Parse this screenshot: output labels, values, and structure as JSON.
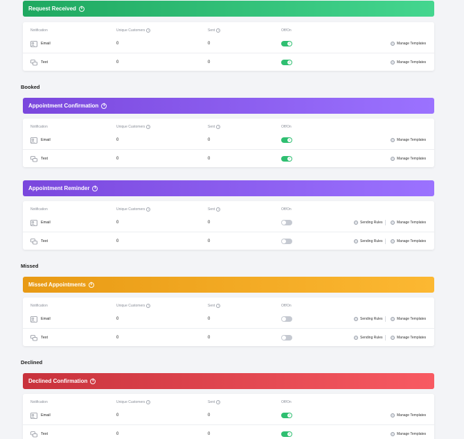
{
  "columns": {
    "notification": "Notification",
    "unique_customers": "Unique Customers",
    "sent": "Sent",
    "off_on": "Off/On"
  },
  "actions": {
    "sending_rules": "Sending Rules",
    "manage_templates": "Manage Templates"
  },
  "sections": {
    "booked": "Booked",
    "missed": "Missed",
    "declined": "Declined"
  },
  "blocks": [
    {
      "title": "Request Received",
      "color": "#2fbf71",
      "rows": [
        {
          "channel": "Email",
          "unique_customers": "0",
          "sent": "0",
          "enabled": true
        },
        {
          "channel": "Text",
          "unique_customers": "0",
          "sent": "0",
          "enabled": true
        }
      ]
    },
    {
      "title": "Appointment Confirmation",
      "color": "#8a5cf0",
      "rows": [
        {
          "channel": "Email",
          "unique_customers": "0",
          "sent": "0",
          "enabled": true
        },
        {
          "channel": "Text",
          "unique_customers": "0",
          "sent": "0",
          "enabled": true
        }
      ]
    },
    {
      "title": "Appointment Reminder",
      "color": "#8a5cf0",
      "rows": [
        {
          "channel": "Email",
          "unique_customers": "0",
          "sent": "0",
          "enabled": false
        },
        {
          "channel": "Text",
          "unique_customers": "0",
          "sent": "0",
          "enabled": false
        }
      ]
    },
    {
      "title": "Missed Appointments",
      "color": "#f4a823",
      "rows": [
        {
          "channel": "Email",
          "unique_customers": "0",
          "sent": "0",
          "enabled": false
        },
        {
          "channel": "Text",
          "unique_customers": "0",
          "sent": "0",
          "enabled": false
        }
      ]
    },
    {
      "title": "Declined Confirmation",
      "color": "#e0474f",
      "rows": [
        {
          "channel": "Email",
          "unique_customers": "0",
          "sent": "0",
          "enabled": true
        },
        {
          "channel": "Text",
          "unique_customers": "0",
          "sent": "0",
          "enabled": true
        }
      ]
    }
  ]
}
